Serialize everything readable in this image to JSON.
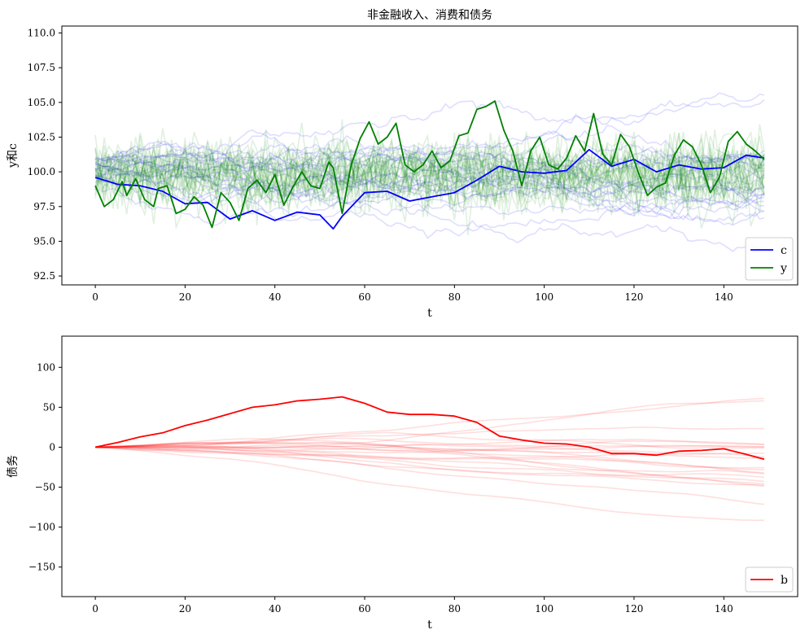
{
  "chart_data": [
    {
      "type": "line",
      "title": "非金融收入、消费和债务",
      "xlabel": "t",
      "ylabel": "y和c",
      "xlim": [
        -7.45,
        156.45
      ],
      "ylim": [
        91.86,
        110.5
      ],
      "xticks": [
        0,
        20,
        40,
        60,
        80,
        100,
        120,
        140
      ],
      "yticks": [
        92.5,
        95.0,
        97.5,
        100.0,
        102.5,
        105.0,
        107.5,
        110.0
      ],
      "ytick_labels": [
        "92.5",
        "95.0",
        "97.5",
        "100.0",
        "102.5",
        "105.0",
        "107.5",
        "110.0"
      ],
      "grid": false,
      "legend_position": "lower-right",
      "colors": {
        "c": "#0000ff",
        "y": "#008000"
      },
      "series": [
        {
          "name": "c",
          "color": "#0000ff",
          "x": [
            0,
            5,
            10,
            15,
            20,
            25,
            30,
            35,
            40,
            45,
            50,
            53,
            55,
            60,
            65,
            70,
            75,
            80,
            85,
            90,
            95,
            100,
            105,
            110,
            115,
            120,
            125,
            130,
            135,
            140,
            145,
            149
          ],
          "y": [
            99.6,
            99.1,
            99.0,
            98.6,
            97.7,
            97.8,
            96.6,
            97.2,
            96.5,
            97.1,
            96.9,
            95.9,
            96.8,
            98.5,
            98.6,
            97.9,
            98.2,
            98.5,
            99.4,
            100.4,
            100.0,
            99.9,
            100.1,
            101.6,
            100.4,
            100.9,
            100.0,
            100.5,
            100.2,
            100.3,
            101.2,
            101.0
          ]
        },
        {
          "name": "y",
          "color": "#008000",
          "x": [
            0,
            2,
            4,
            6,
            7,
            9,
            11,
            13,
            14,
            16,
            18,
            20,
            22,
            24,
            26,
            28,
            30,
            32,
            34,
            36,
            38,
            40,
            42,
            44,
            46,
            48,
            50,
            52,
            53,
            55,
            57,
            59,
            61,
            63,
            65,
            67,
            69,
            71,
            73,
            75,
            77,
            79,
            81,
            83,
            85,
            87,
            89,
            91,
            93,
            95,
            97,
            99,
            101,
            103,
            105,
            107,
            109,
            111,
            113,
            115,
            117,
            119,
            121,
            123,
            125,
            127,
            129,
            131,
            133,
            135,
            137,
            139,
            141,
            143,
            145,
            147,
            149
          ],
          "y": [
            99.0,
            97.5,
            98.0,
            99.3,
            98.3,
            99.5,
            98.0,
            97.5,
            98.8,
            99.0,
            97.0,
            97.3,
            98.2,
            97.6,
            96.0,
            98.5,
            97.8,
            96.5,
            98.8,
            99.4,
            98.5,
            99.8,
            97.6,
            98.9,
            100.0,
            99.0,
            98.8,
            100.7,
            100.3,
            97.0,
            100.5,
            102.4,
            103.6,
            102.0,
            102.5,
            103.5,
            100.5,
            100.0,
            100.5,
            101.5,
            100.3,
            100.8,
            102.6,
            102.8,
            104.5,
            104.7,
            105.1,
            103.0,
            101.5,
            99.0,
            101.5,
            102.5,
            100.5,
            100.2,
            101.0,
            102.6,
            101.5,
            104.2,
            101.3,
            100.5,
            102.7,
            101.8,
            99.9,
            98.3,
            98.9,
            99.2,
            101.2,
            102.3,
            101.8,
            100.5,
            98.5,
            99.6,
            102.2,
            102.9,
            102.0,
            101.5,
            100.9
          ]
        }
      ]
    },
    {
      "type": "line",
      "title": "",
      "xlabel": "t",
      "ylabel": "债务",
      "xlim": [
        -7.45,
        156.45
      ],
      "ylim": [
        -187,
        139
      ],
      "xticks": [
        0,
        20,
        40,
        60,
        80,
        100,
        120,
        140
      ],
      "yticks": [
        -150,
        -100,
        -50,
        0,
        50,
        100
      ],
      "ytick_labels": [
        "−150",
        "−100",
        "−50",
        "0",
        "50",
        "100"
      ],
      "grid": false,
      "legend_position": "lower-right",
      "colors": {
        "b": "#ff0000"
      },
      "series": [
        {
          "name": "b",
          "color": "#ff0000",
          "x": [
            0,
            5,
            10,
            15,
            20,
            25,
            30,
            35,
            40,
            45,
            50,
            55,
            60,
            65,
            70,
            75,
            80,
            85,
            90,
            95,
            100,
            105,
            110,
            115,
            120,
            125,
            130,
            135,
            140,
            145,
            149
          ],
          "y": [
            0,
            6,
            13,
            18,
            27,
            34,
            42,
            50,
            53,
            58,
            60,
            63,
            55,
            44,
            41,
            41,
            39,
            31,
            14,
            9,
            5,
            4,
            0,
            -8,
            -8,
            -10,
            -5,
            -4,
            -2,
            -9,
            -15
          ]
        }
      ]
    }
  ]
}
